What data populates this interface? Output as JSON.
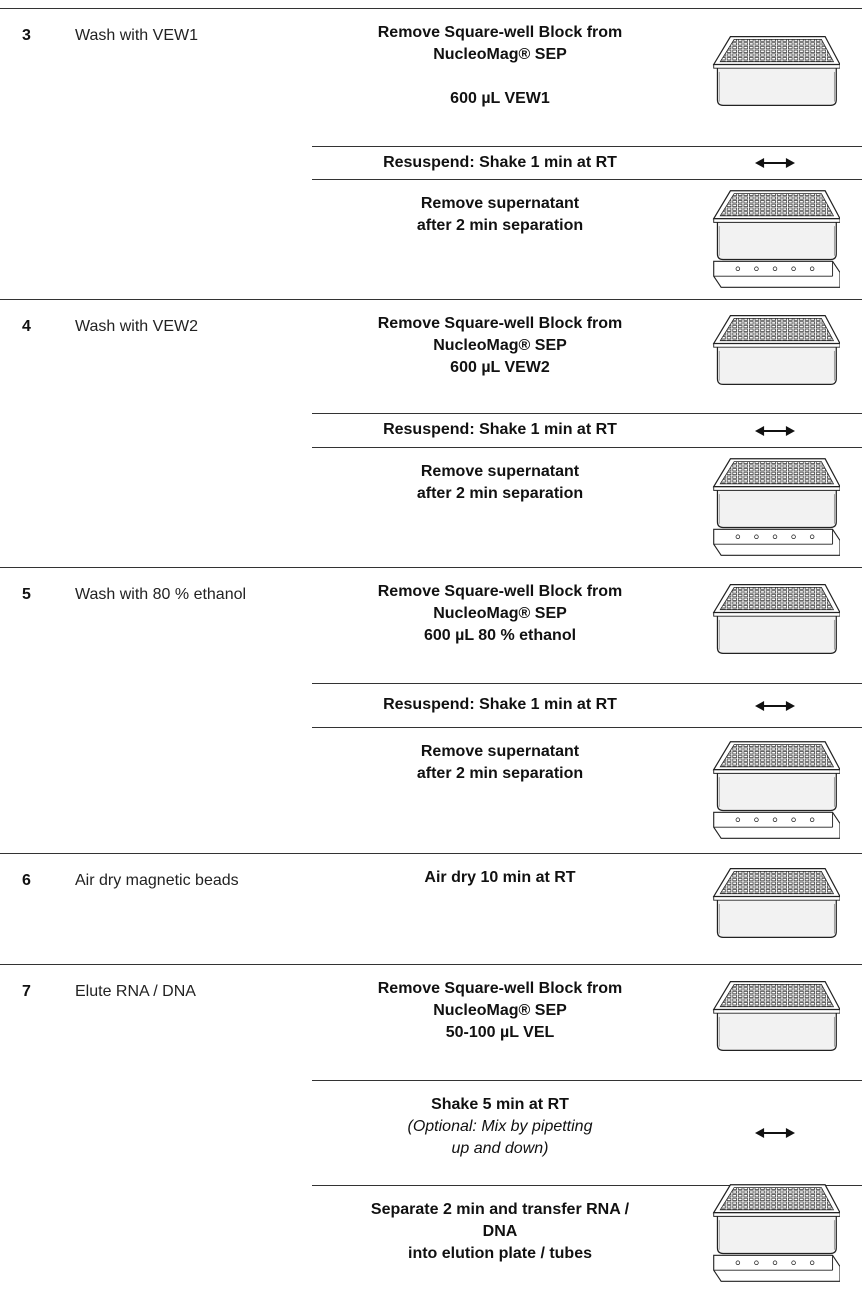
{
  "steps": [
    {
      "number": "3",
      "title": "Wash with VEW1",
      "substeps": [
        {
          "lines": [
            "Remove Square-well Block from",
            "NucleoMag® SEP",
            "600 µL VEW1"
          ]
        },
        {
          "lines": [
            "Resuspend: Shake 1 min at RT"
          ]
        },
        {
          "lines": [
            "Remove supernatant",
            "after 2 min separation"
          ]
        }
      ]
    },
    {
      "number": "4",
      "title": "Wash with VEW2",
      "substeps": [
        {
          "lines": [
            "Remove Square-well Block from",
            "NucleoMag® SEP",
            "600 µL VEW2"
          ]
        },
        {
          "lines": [
            "Resuspend: Shake 1 min at RT"
          ]
        },
        {
          "lines": [
            "Remove supernatant",
            "after 2 min separation"
          ]
        }
      ]
    },
    {
      "number": "5",
      "title": "Wash with 80 % ethanol",
      "substeps": [
        {
          "lines": [
            "Remove Square-well Block from",
            "NucleoMag® SEP",
            "600 µL 80 % ethanol"
          ]
        },
        {
          "lines": [
            "Resuspend: Shake 1 min at RT"
          ]
        },
        {
          "lines": [
            "Remove supernatant",
            "after 2 min separation"
          ]
        }
      ]
    },
    {
      "number": "6",
      "title": "Air dry magnetic beads",
      "substeps": [
        {
          "lines": [
            "Air dry 10 min at RT"
          ]
        }
      ]
    },
    {
      "number": "7",
      "title": "Elute RNA / DNA",
      "substeps": [
        {
          "lines": [
            "Remove Square-well Block from",
            "NucleoMag® SEP",
            "50-100 µL VEL"
          ]
        },
        {
          "lines": [
            "Shake 5 min at RT"
          ],
          "note": [
            "(Optional: Mix by pipetting",
            "up and down)"
          ]
        },
        {
          "lines": [
            "Separate 2 min and transfer RNA / ",
            "DNA",
            "into elution plate / tubes"
          ]
        }
      ]
    }
  ]
}
